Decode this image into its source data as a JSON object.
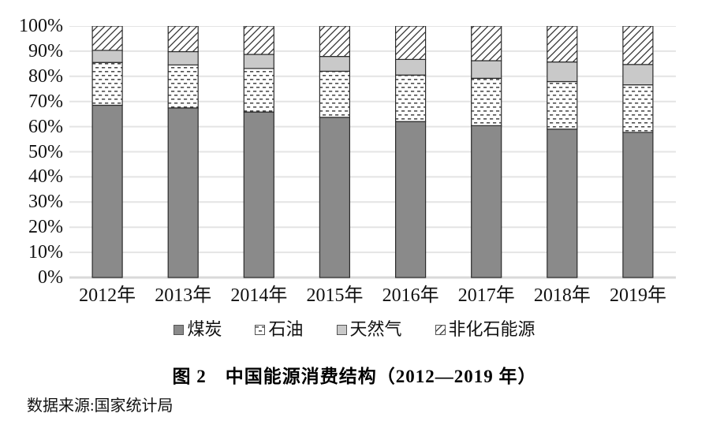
{
  "figure": {
    "title": "图 2　中国能源消费结构（2012—2019 年）",
    "source": "数据来源:国家统计局"
  },
  "chart_data": {
    "type": "bar",
    "stacked": true,
    "orientation": "vertical",
    "title": "图 2　中国能源消费结构（2012—2019 年）",
    "xlabel": "",
    "ylabel": "",
    "ylim": [
      0,
      100
    ],
    "ytick_step": 10,
    "ytick_labels": [
      "100%",
      "90%",
      "80%",
      "70%",
      "60%",
      "50%",
      "40%",
      "30%",
      "20%",
      "10%",
      "0%"
    ],
    "grid": "horizontal",
    "legend_position": "bottom",
    "unit": "percent",
    "categories": [
      "2012年",
      "2013年",
      "2014年",
      "2015年",
      "2016年",
      "2017年",
      "2018年",
      "2019年"
    ],
    "series": [
      {
        "name": "煤炭",
        "style": "solid-dark-gray",
        "values": [
          68.5,
          67.4,
          65.8,
          63.7,
          62.0,
          60.4,
          59.0,
          57.7
        ]
      },
      {
        "name": "石油",
        "style": "dash-pattern",
        "values": [
          17.0,
          17.1,
          17.3,
          18.3,
          18.5,
          18.8,
          18.9,
          18.9
        ]
      },
      {
        "name": "天然气",
        "style": "solid-light-gray",
        "values": [
          4.8,
          5.3,
          5.6,
          5.9,
          6.2,
          7.0,
          7.8,
          8.1
        ]
      },
      {
        "name": "非化石能源",
        "style": "diagonal-hatch",
        "values": [
          9.7,
          10.2,
          11.3,
          12.1,
          13.3,
          13.8,
          14.3,
          15.3
        ]
      }
    ]
  },
  "colors": {
    "coal_fill": "#8a8a8a",
    "gas_fill": "#c9c9c9",
    "pattern_background": "#ffffff",
    "dash_ink": "#4d4d4d",
    "hatch_ink": "#333333",
    "segment_border": "#2b2b2b",
    "gridline": "#e4e4e4",
    "baseline": "#d9d9d9",
    "text": "#111111"
  }
}
